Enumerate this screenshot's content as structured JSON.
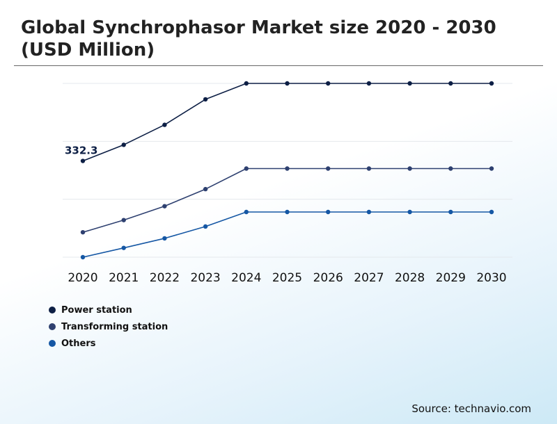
{
  "title": "Global Synchrophasor Market size 2020 - 2030 (USD Million)",
  "source": "Source: technavio.com",
  "chart_data": {
    "type": "line",
    "x": [
      "2020",
      "2021",
      "2022",
      "2023",
      "2024",
      "2025",
      "2026",
      "2027",
      "2028",
      "2029",
      "2030"
    ],
    "grid": true,
    "y_axis_labels_visible": false,
    "ylim": [
      0,
      600
    ],
    "legend_position": "bottom-left",
    "series": [
      {
        "name": "Power station",
        "color": "#0d1f45",
        "values": [
          332.3,
          388,
          457,
          545,
          600,
          600,
          600,
          600,
          600,
          600,
          600
        ]
      },
      {
        "name": "Transforming station",
        "color": "#2e4070",
        "values": [
          86,
          128,
          176,
          235,
          306,
          306,
          306,
          306,
          306,
          306,
          306
        ]
      },
      {
        "name": "Others",
        "color": "#1557a4",
        "values": [
          0,
          32,
          65,
          106,
          156,
          156,
          156,
          156,
          156,
          156,
          156
        ]
      }
    ],
    "annotations": [
      {
        "series": 0,
        "index": 0,
        "text": "332.3"
      }
    ]
  }
}
